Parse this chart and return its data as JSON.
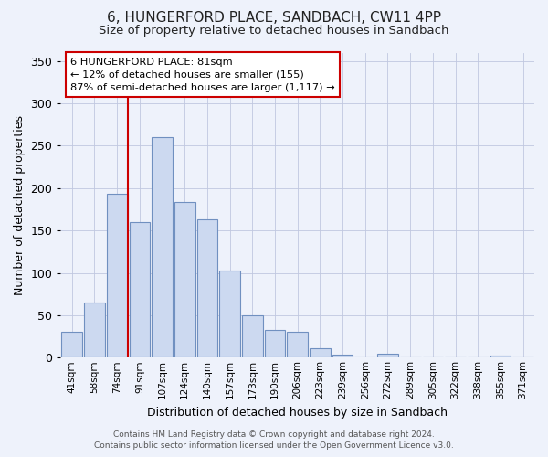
{
  "title": "6, HUNGERFORD PLACE, SANDBACH, CW11 4PP",
  "subtitle": "Size of property relative to detached houses in Sandbach",
  "xlabel": "Distribution of detached houses by size in Sandbach",
  "ylabel": "Number of detached properties",
  "bar_labels": [
    "41sqm",
    "58sqm",
    "74sqm",
    "91sqm",
    "107sqm",
    "124sqm",
    "140sqm",
    "157sqm",
    "173sqm",
    "190sqm",
    "206sqm",
    "223sqm",
    "239sqm",
    "256sqm",
    "272sqm",
    "289sqm",
    "305sqm",
    "322sqm",
    "338sqm",
    "355sqm",
    "371sqm"
  ],
  "bar_heights": [
    30,
    65,
    193,
    160,
    260,
    184,
    163,
    103,
    50,
    33,
    30,
    11,
    3,
    0,
    5,
    0,
    0,
    0,
    0,
    2,
    0
  ],
  "bar_color": "#ccd9f0",
  "bar_edge_color": "#7090c0",
  "vline_x_idx": 2,
  "vline_color": "#cc0000",
  "ylim": [
    0,
    360
  ],
  "yticks": [
    0,
    50,
    100,
    150,
    200,
    250,
    300,
    350
  ],
  "annotation_title": "6 HUNGERFORD PLACE: 81sqm",
  "annotation_line1": "← 12% of detached houses are smaller (155)",
  "annotation_line2": "87% of semi-detached houses are larger (1,117) →",
  "annotation_box_color": "#ffffff",
  "annotation_box_edge": "#cc0000",
  "footer_line1": "Contains HM Land Registry data © Crown copyright and database right 2024.",
  "footer_line2": "Contains public sector information licensed under the Open Government Licence v3.0.",
  "background_color": "#eef2fb",
  "plot_bg_color": "#eef2fb"
}
